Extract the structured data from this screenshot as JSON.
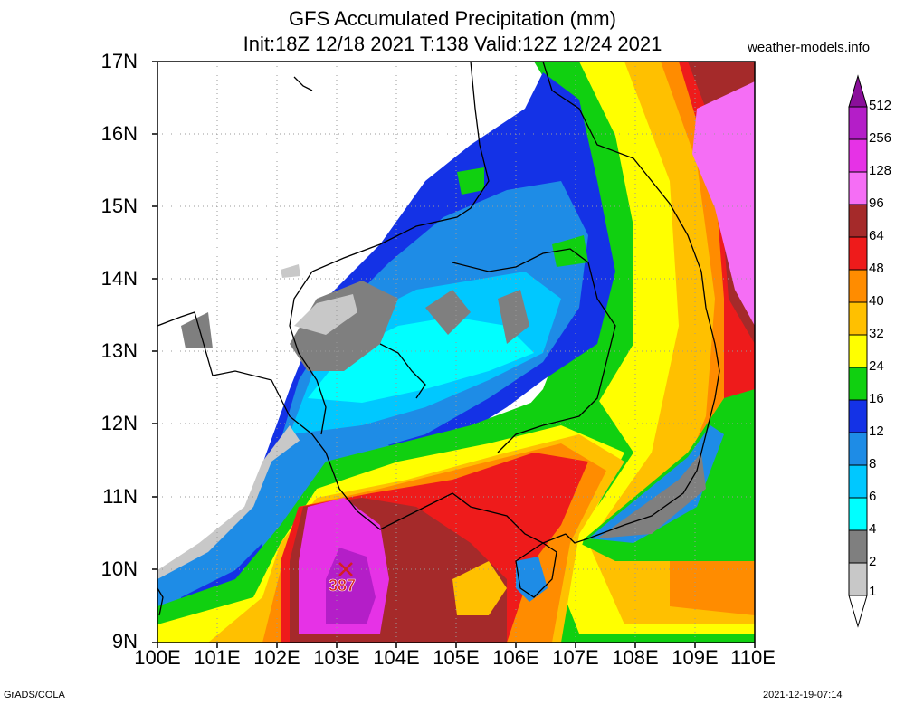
{
  "title": {
    "line1": "GFS Accumulated Precipitation (mm)",
    "line2": "Init:18Z 12/18 2021 T:138 Valid:12Z 12/24 2021"
  },
  "site_label": "weather-models.info",
  "footer": {
    "left": "GrADS/COLA",
    "right": "2021-12-19-07:14"
  },
  "axes": {
    "lat_labels": [
      "17N",
      "16N",
      "15N",
      "14N",
      "13N",
      "12N",
      "11N",
      "10N",
      "9N"
    ],
    "lon_labels": [
      "100E",
      "101E",
      "102E",
      "103E",
      "104E",
      "105E",
      "106E",
      "107E",
      "108E",
      "109E",
      "110E"
    ],
    "lat_range": [
      9,
      17
    ],
    "lon_range": [
      100,
      110
    ]
  },
  "max_marker": {
    "value": "387",
    "lon": 103.2,
    "lat": 10.0
  },
  "legend": {
    "levels": [
      "512",
      "256",
      "128",
      "96",
      "64",
      "48",
      "40",
      "32",
      "24",
      "16",
      "12",
      "8",
      "6",
      "4",
      "2",
      "1"
    ],
    "colors": [
      "#8a0f9a",
      "#b41ec8",
      "#e632e6",
      "#f56ef5",
      "#a52a2a",
      "#ee1b1b",
      "#ff8c00",
      "#ffc000",
      "#ffff00",
      "#10d010",
      "#1432e6",
      "#1e8ce6",
      "#00c8ff",
      "#00ffff",
      "#7f7f7f",
      "#c8c8c8",
      "#ffffff"
    ]
  },
  "colors": {
    "drizzle": "#c8c8c8",
    "light": "#7f7f7f",
    "cyan": "#00ffff",
    "sky": "#00c8ff",
    "blue": "#1e8ce6",
    "dblue": "#1432e6",
    "green": "#10d010",
    "yellow": "#ffff00",
    "gold": "#ffc000",
    "orange": "#ff8c00",
    "red": "#ee1b1b",
    "brown": "#a52a2a",
    "pink": "#f56ef5",
    "magenta": "#e632e6",
    "purple": "#b41ec8"
  }
}
